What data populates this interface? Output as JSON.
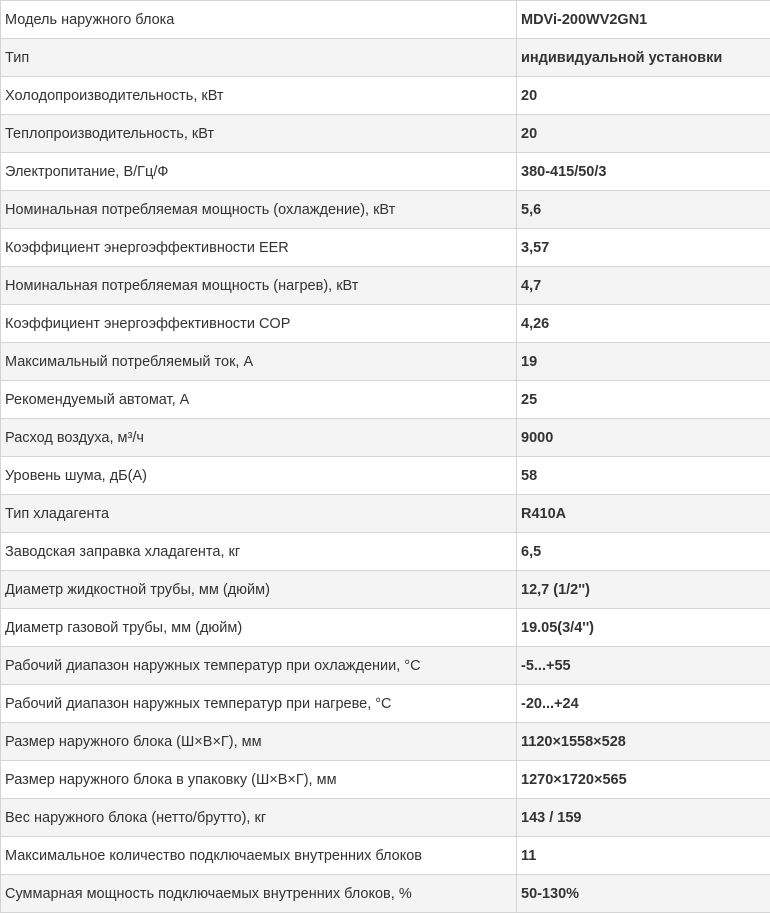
{
  "spec_table": {
    "rows": [
      {
        "label": "Модель наружного блока",
        "value": "MDVi-200WV2GN1"
      },
      {
        "label": "Тип",
        "value": "индивидуальной установки"
      },
      {
        "label": "Холодопроизводительность, кВт",
        "value": "20"
      },
      {
        "label": "Теплопроизводительность, кВт",
        "value": "20"
      },
      {
        "label": "Электропитание, В/Гц/Ф",
        "value": "380-415/50/3"
      },
      {
        "label": "Номинальная потребляемая мощность (охлаждение), кВт",
        "value": "5,6"
      },
      {
        "label": "Коэффициент энергоэффективности EER",
        "value": "3,57"
      },
      {
        "label": "Номинальная потребляемая мощность (нагрев), кВт",
        "value": "4,7"
      },
      {
        "label": "Коэффициент энергоэффективности COP",
        "value": "4,26"
      },
      {
        "label": "Максимальный потребляемый ток, А",
        "value": "19"
      },
      {
        "label": "Рекомендуемый автомат, А",
        "value": "25"
      },
      {
        "label": "Расход воздуха, м³/ч",
        "value": "9000"
      },
      {
        "label": "Уровень шума, дБ(А)",
        "value": "58"
      },
      {
        "label": "Тип хладагента",
        "value": "R410A"
      },
      {
        "label": "Заводская заправка хладагента, кг",
        "value": "6,5"
      },
      {
        "label": "Диаметр жидкостной трубы, мм (дюйм)",
        "value": "12,7 (1/2'')"
      },
      {
        "label": "Диаметр газовой трубы, мм (дюйм)",
        "value": "19.05(3/4'')"
      },
      {
        "label": "Рабочий диапазон наружных температур при охлаждении, °С",
        "value": "-5...+55"
      },
      {
        "label": "Рабочий диапазон наружных температур при нагреве, °С",
        "value": "-20...+24"
      },
      {
        "label": "Размер наружного блока (Ш×В×Г), мм",
        "value": "1120×1558×528"
      },
      {
        "label": "Размер наружного блока в упаковку (Ш×В×Г), мм",
        "value": "1270×1720×565"
      },
      {
        "label": "Вес наружного блока (нетто/брутто), кг",
        "value": "143 / 159"
      },
      {
        "label": "Максимальное количество подключаемых внутренних блоков",
        "value": "11"
      },
      {
        "label": "Суммарная мощность подключаемых внутренних блоков, %",
        "value": "50-130%"
      }
    ]
  }
}
